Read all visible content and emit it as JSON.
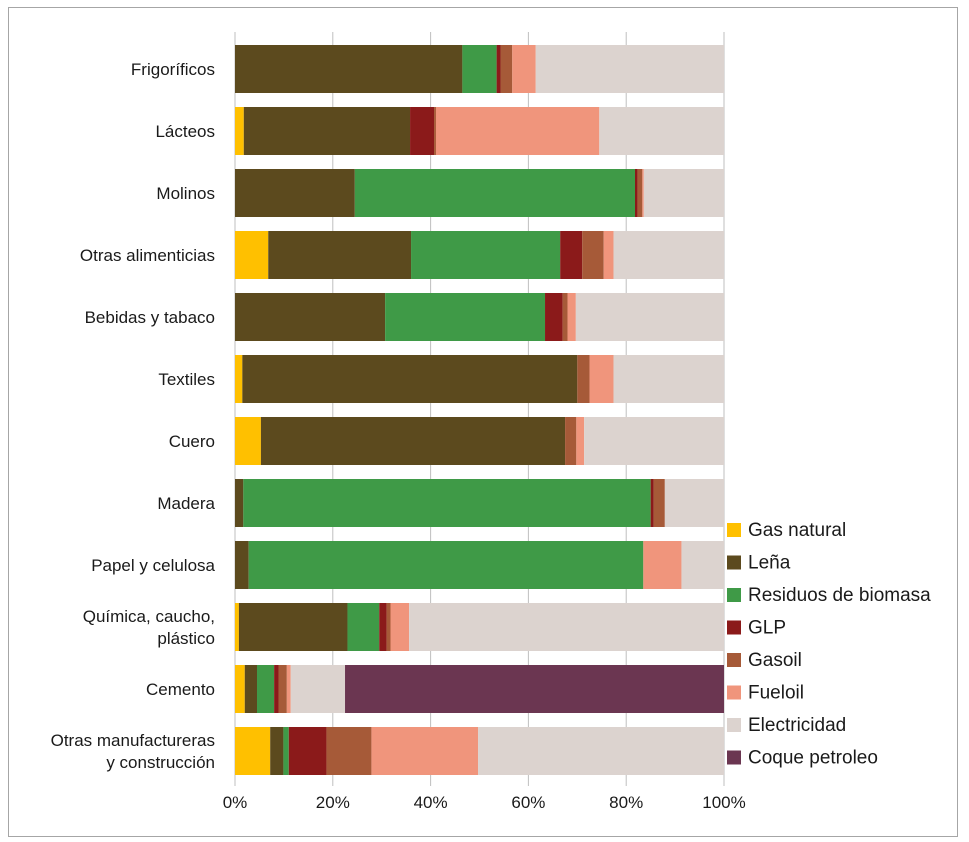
{
  "chart_data": {
    "type": "bar",
    "orientation": "horizontal",
    "stacked": "percent",
    "categories": [
      "Frigoríficos",
      "Lácteos",
      "Molinos",
      "Otras alimenticias",
      "Bebidas y tabaco",
      "Textiles",
      "Cuero",
      "Madera",
      "Papel y celulosa",
      "Química, caucho, plástico",
      "Cemento",
      "Otras manufactureras y construcción"
    ],
    "category_lines": [
      [
        "Frigoríficos"
      ],
      [
        "Lácteos"
      ],
      [
        "Molinos"
      ],
      [
        "Otras alimenticias"
      ],
      [
        "Bebidas y tabaco"
      ],
      [
        "Textiles"
      ],
      [
        "Cuero"
      ],
      [
        "Madera"
      ],
      [
        "Papel y celulosa"
      ],
      [
        "Química, caucho,",
        "plástico"
      ],
      [
        "Cemento"
      ],
      [
        "Otras manufactureras",
        "y construcción"
      ]
    ],
    "series": [
      {
        "name": "Gas natural",
        "color": "#ffc000",
        "values": [
          0,
          1.8,
          0,
          6.8,
          0,
          1.5,
          5.3,
          0,
          0,
          0.8,
          2.0,
          7.2
        ]
      },
      {
        "name": "Leña",
        "color": "#5c4a1e",
        "values": [
          46.5,
          34.0,
          24.5,
          29.2,
          30.7,
          68.5,
          62.2,
          1.7,
          2.8,
          22.2,
          2.5,
          2.7
        ]
      },
      {
        "name": "Residuos de biomasa",
        "color": "#3f9a47",
        "values": [
          7.0,
          0,
          57.3,
          30.5,
          32.7,
          0,
          0,
          83.3,
          80.7,
          6.5,
          3.5,
          1.1
        ]
      },
      {
        "name": "GLP",
        "color": "#8b1a1a",
        "values": [
          0.8,
          4.9,
          0.5,
          4.5,
          3.6,
          0,
          0,
          0.6,
          0,
          1.5,
          0.9,
          7.7
        ]
      },
      {
        "name": "Gasoil",
        "color": "#a65a38",
        "values": [
          2.4,
          0.4,
          1.0,
          4.4,
          1.0,
          2.5,
          2.3,
          2.3,
          0,
          0.8,
          1.7,
          9.2
        ]
      },
      {
        "name": "Fueloil",
        "color": "#f0957c",
        "values": [
          4.8,
          33.4,
          0.3,
          2.0,
          1.7,
          4.9,
          1.6,
          0,
          7.8,
          3.8,
          0.8,
          21.8
        ]
      },
      {
        "name": "Electricidad",
        "color": "#dcd3cf",
        "values": [
          38.5,
          25.5,
          16.4,
          22.6,
          30.3,
          22.6,
          28.6,
          12.1,
          8.7,
          64.4,
          11.1,
          50.3
        ]
      },
      {
        "name": "Coque petroleo",
        "color": "#6b3651",
        "values": [
          0,
          0,
          0,
          0,
          0,
          0,
          0,
          0,
          0,
          0,
          77.5,
          0
        ]
      }
    ],
    "xlim": [
      0,
      100
    ],
    "xticks": [
      "0%",
      "20%",
      "40%",
      "60%",
      "80%",
      "100%"
    ],
    "xtick_values": [
      0,
      20,
      40,
      60,
      80,
      100
    ],
    "grid": true,
    "legend_position": "right"
  }
}
